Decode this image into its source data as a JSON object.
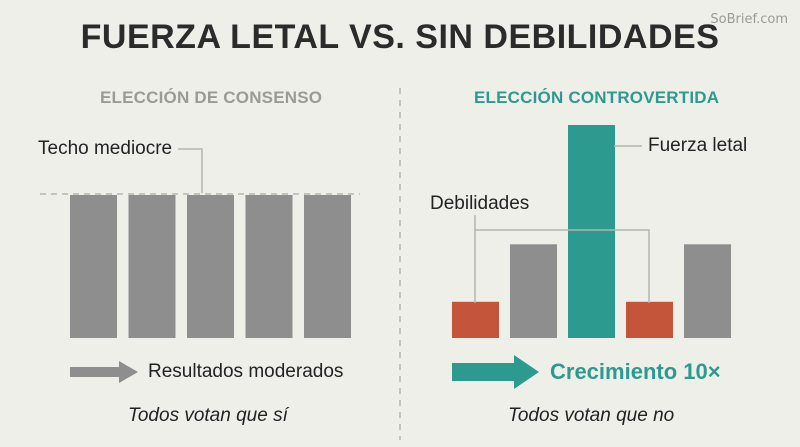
{
  "watermark": "SoBrief.com",
  "title": "FUERZA LETAL VS. SIN DEBILIDADES",
  "left": {
    "heading": "ELECCIÓN DE CONSENSO",
    "ceiling_label": "Techo mediocre",
    "result_label": "Resultados moderados",
    "caption": "Todos votan que sí",
    "bars": [
      1,
      1,
      1,
      1,
      1
    ]
  },
  "right": {
    "heading": "ELECCIÓN CONTROVERTIDA",
    "strength_label": "Fuerza letal",
    "weakness_label": "Debilidades",
    "result_label": "Crecimiento 10×",
    "caption": "Todos votan que no",
    "bars": [
      {
        "value": 0.17,
        "kind": "weakness"
      },
      {
        "value": 0.44,
        "kind": "neutral"
      },
      {
        "value": 1.0,
        "kind": "strength"
      },
      {
        "value": 0.17,
        "kind": "weakness"
      },
      {
        "value": 0.44,
        "kind": "neutral"
      }
    ]
  },
  "colors": {
    "background": "#efefea",
    "neutral": "#8e8e8e",
    "strength": "#2c9a8f",
    "weakness": "#c4553a",
    "muted": "#9a9a96",
    "connector": "#b5b5b0"
  }
}
